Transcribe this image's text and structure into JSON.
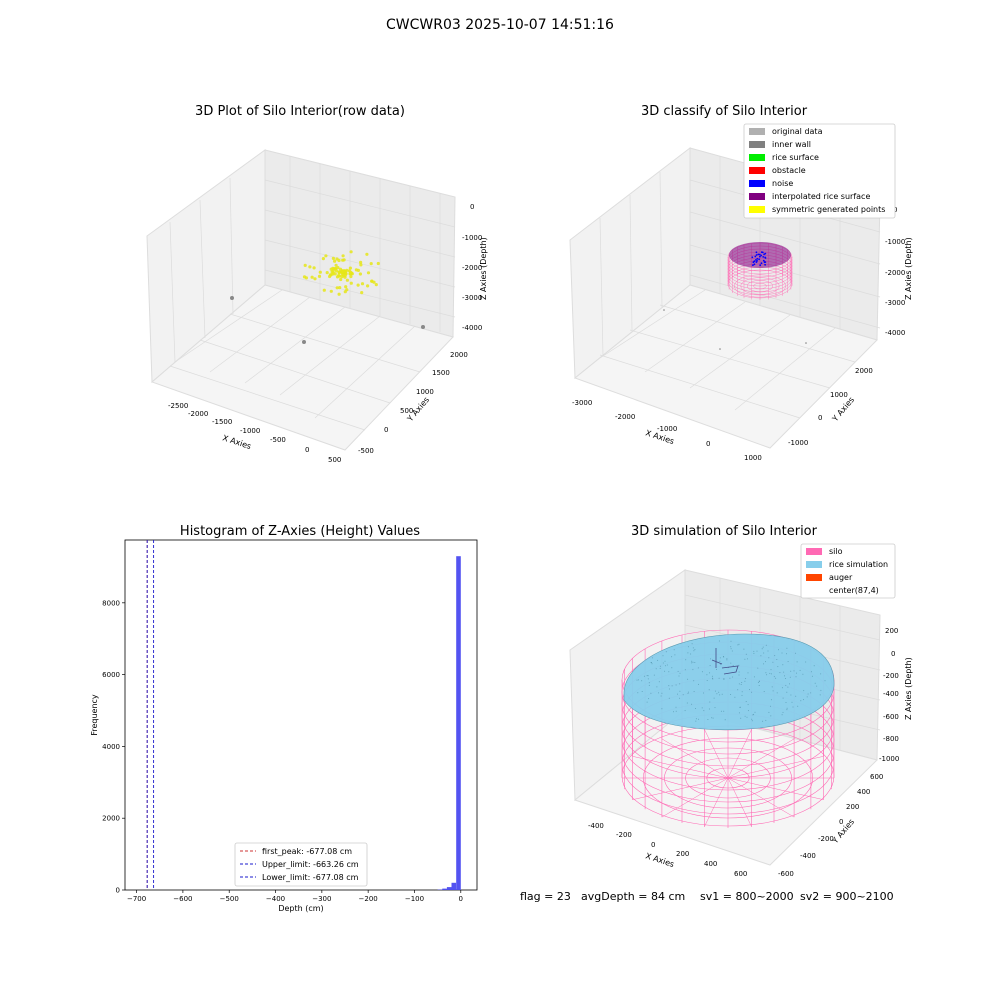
{
  "suptitle": "CWCWR03 2025-10-07 14:51:16",
  "chart_data": [
    {
      "type": "scatter",
      "title": "3D Plot of Silo Interior(row data)",
      "xlabel": "X Axies",
      "ylabel": "Y Axies",
      "zlabel": "Z Axies (Depth)",
      "xticks": [
        "-2500",
        "-2000",
        "-1500",
        "-1000",
        "-500",
        "0",
        "500"
      ],
      "yticks": [
        "-500",
        "0",
        "500",
        "1000",
        "1500",
        "2000"
      ],
      "zticks": [
        "0",
        "-1000",
        "-2000",
        "-3000",
        "-4000"
      ],
      "colors": {
        "cluster": "#e6e61a",
        "outlier": "#888888"
      }
    },
    {
      "type": "scatter",
      "title": "3D classify of Silo Interior",
      "xlabel": "X Axies",
      "ylabel": "Y Axies",
      "zlabel": "Z Axies (Depth)",
      "xticks": [
        "-3000",
        "-2000",
        "-1000",
        "0",
        "1000"
      ],
      "yticks": [
        "-1000",
        "0",
        "1000",
        "2000"
      ],
      "zticks": [
        "0",
        "-1000",
        "-2000",
        "-3000",
        "-4000"
      ],
      "legend": [
        {
          "name": "original data",
          "color": "#b0b0b0"
        },
        {
          "name": "inner wall",
          "color": "#808080"
        },
        {
          "name": "rice surface",
          "color": "#00ee00"
        },
        {
          "name": "obstacle",
          "color": "#ff0000"
        },
        {
          "name": "noise",
          "color": "#0000ff"
        },
        {
          "name": "interpolated rice surface",
          "color": "#800080"
        },
        {
          "name": "symmetric generated points",
          "color": "#ffff00"
        }
      ],
      "legend_position": "top-right"
    },
    {
      "type": "bar",
      "title": "Histogram of Z-Axies (Height) Values",
      "xlabel": "Depth (cm)",
      "ylabel": "Frequency",
      "xlim": [
        -725,
        35
      ],
      "ylim": [
        0,
        9750
      ],
      "xticks": [
        -700,
        -600,
        -500,
        -400,
        -300,
        -200,
        -100,
        0
      ],
      "yticks": [
        0,
        2000,
        4000,
        6000,
        8000
      ],
      "bins": [
        {
          "x0": -50,
          "x1": -40,
          "value": 10
        },
        {
          "x0": -40,
          "x1": -30,
          "value": 40
        },
        {
          "x0": -30,
          "x1": -20,
          "value": 80
        },
        {
          "x0": -20,
          "x1": -10,
          "value": 200
        },
        {
          "x0": -10,
          "x1": 0,
          "value": 9300
        }
      ],
      "bar_color": "#4a4af0",
      "vlines": [
        {
          "x": -677.08,
          "color": "#cc3333"
        },
        {
          "x": -663.26,
          "color": "#1a1acc"
        },
        {
          "x": -677.08,
          "color": "#1a1acc"
        }
      ],
      "legend": [
        {
          "name": "first_peak: -677.08 cm",
          "color": "#cc3333"
        },
        {
          "name": "Upper_limit: -663.26 cm",
          "color": "#1a1acc"
        },
        {
          "name": "Lower_limit: -677.08 cm",
          "color": "#1a1acc"
        }
      ],
      "legend_position": "lower-center"
    },
    {
      "type": "scatter",
      "title": "3D simulation of Silo Interior",
      "xlabel": "X Axies",
      "ylabel": "Y Axies",
      "zlabel": "Z Axies (Depth)",
      "xticks": [
        "-400",
        "-200",
        "0",
        "200",
        "400",
        "600"
      ],
      "yticks": [
        "-600",
        "-400",
        "-200",
        "0",
        "200",
        "400",
        "600"
      ],
      "zticks": [
        "200",
        "0",
        "-200",
        "-400",
        "-600",
        "-800",
        "-1000"
      ],
      "legend": [
        {
          "name": "silo",
          "color": "#ff69b4"
        },
        {
          "name": "rice simulation",
          "color": "#87ceeb"
        },
        {
          "name": "auger",
          "color": "#ff4500"
        },
        {
          "name": "center(87,4)",
          "color": ""
        }
      ],
      "legend_position": "top-right"
    }
  ],
  "status": {
    "flag": "flag = 23",
    "avg": "avgDepth = 84 cm",
    "sv1": "sv1 = 800~2000",
    "sv2": "sv2 = 900~2100"
  }
}
